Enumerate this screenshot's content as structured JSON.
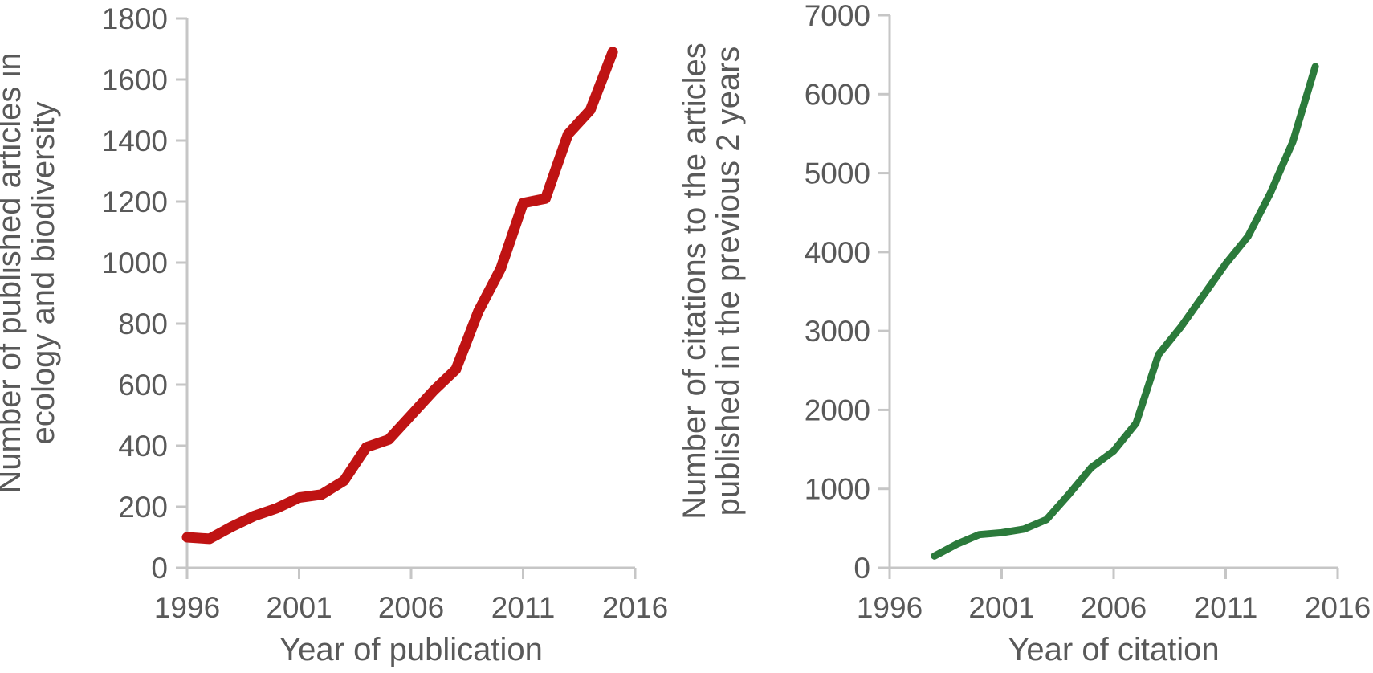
{
  "figure": {
    "background": "#ffffff",
    "text_color": "#595959",
    "axis_color": "#c6c6c6"
  },
  "chart_data": [
    {
      "type": "line",
      "id": "publications",
      "title": "",
      "xlabel": "Year of publication",
      "ylabel": "Number of published articles in ecology and biodiversity",
      "ylabel_lines": [
        "Number of published articles in",
        "ecology and biodiversity"
      ],
      "line_color": "#bf1313",
      "line_width": 13,
      "grid": false,
      "legend": "none",
      "xlim": [
        1996,
        2016
      ],
      "ylim": [
        0,
        1800
      ],
      "xticks": [
        1996,
        2001,
        2006,
        2011,
        2016
      ],
      "yticks": [
        0,
        200,
        400,
        600,
        800,
        1000,
        1200,
        1400,
        1600,
        1800
      ],
      "x": [
        1996,
        1997,
        1998,
        1999,
        2000,
        2001,
        2002,
        2003,
        2004,
        2005,
        2006,
        2007,
        2008,
        2009,
        2010,
        2011,
        2012,
        2013,
        2014,
        2015
      ],
      "y": [
        100,
        95,
        135,
        170,
        195,
        230,
        240,
        285,
        395,
        420,
        500,
        580,
        650,
        840,
        980,
        1195,
        1210,
        1420,
        1500,
        1690
      ]
    },
    {
      "type": "line",
      "id": "citations",
      "title": "",
      "xlabel": "Year of citation",
      "ylabel": "Number of citations to the articles published in the previous 2 years",
      "ylabel_lines": [
        "Number of citations to the articles",
        "published in the previous 2 years"
      ],
      "line_color": "#2b7a3b",
      "line_width": 9,
      "grid": false,
      "legend": "none",
      "xlim": [
        1996,
        2016
      ],
      "ylim": [
        0,
        7000
      ],
      "xticks": [
        1996,
        2001,
        2006,
        2011,
        2016
      ],
      "yticks": [
        0,
        1000,
        2000,
        3000,
        4000,
        5000,
        6000,
        7000
      ],
      "x": [
        1998,
        1999,
        2000,
        2001,
        2002,
        2003,
        2004,
        2005,
        2006,
        2007,
        2008,
        2009,
        2010,
        2011,
        2012,
        2013,
        2014,
        2015
      ],
      "y": [
        150,
        300,
        420,
        445,
        490,
        610,
        930,
        1270,
        1480,
        1830,
        2700,
        3050,
        3450,
        3850,
        4200,
        4750,
        5400,
        6350
      ]
    }
  ]
}
